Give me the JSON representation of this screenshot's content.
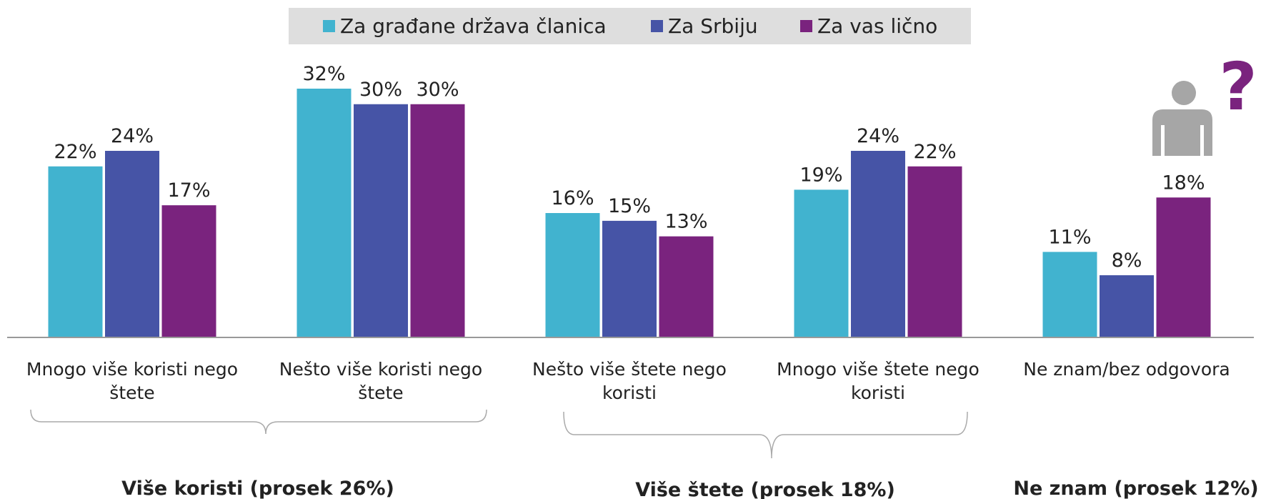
{
  "chart_data": {
    "type": "bar",
    "categories": [
      "Mnogo više koristi nego štete",
      "Nešto više koristi nego štete",
      "Nešto više štete nego koristi",
      "Mnogo više štete nego koristi",
      "Ne znam/bez odgovora"
    ],
    "series": [
      {
        "name": "Za građane država članica",
        "color": "#41b3cf",
        "values": [
          22,
          32,
          16,
          19,
          11
        ],
        "value_labels": [
          "22%",
          "32%",
          "16%",
          "19%",
          "11%"
        ]
      },
      {
        "name": "Za Srbiju",
        "color": "#4654a6",
        "values": [
          24,
          30,
          15,
          24,
          8
        ],
        "value_labels": [
          "24%",
          "30%",
          "15%",
          "24%",
          "8%"
        ]
      },
      {
        "name": "Za vas lično",
        "color": "#7a237e",
        "values": [
          17,
          30,
          13,
          22,
          18
        ],
        "value_labels": [
          "17%",
          "30%",
          "13%",
          "22%",
          "18%"
        ]
      }
    ],
    "ylim": [
      0,
      40
    ],
    "legend": "top",
    "annotations": [
      "Više koristi (prosek 26%)",
      "Više štete (prosek 18%)",
      "Ne znam (prosek 12%)"
    ],
    "icon_text": "?"
  }
}
